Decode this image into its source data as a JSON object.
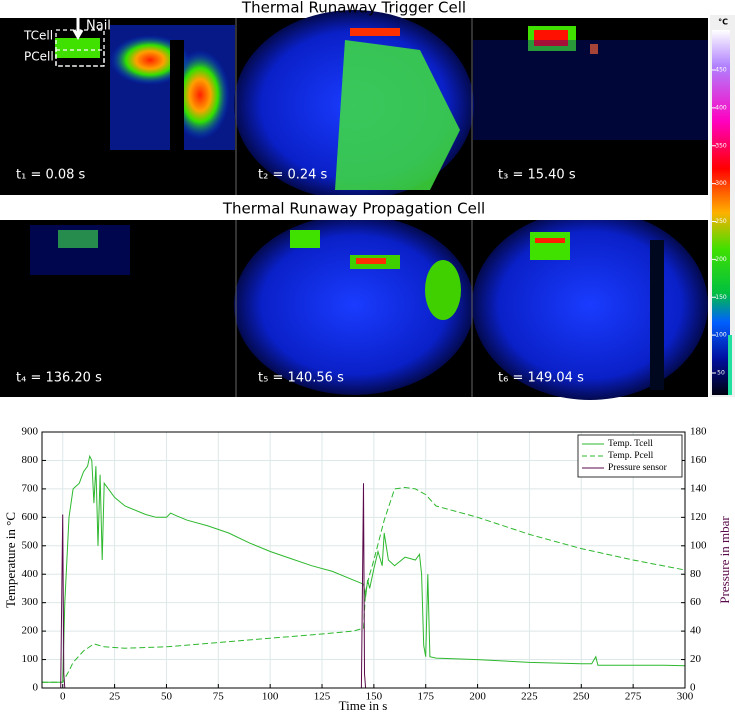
{
  "figure": {
    "row_titles": [
      "Thermal Runaway Trigger Cell",
      "Thermal Runaway Propagation Cell"
    ],
    "panels": [
      "t₁ = 0.08 s",
      "t₂ = 0.24 s",
      "t₃ = 15.40 s",
      "t₄ = 136.20 s",
      "t₅ = 140.56 s",
      "t₆ = 149.04 s"
    ],
    "annotations": [
      "Nail",
      "TCell",
      "PCell"
    ],
    "colorbar": {
      "unit": "°C",
      "ticks": [
        50,
        100,
        150,
        200,
        250,
        300,
        350,
        400,
        450
      ]
    }
  },
  "chart_data": {
    "type": "line",
    "xlabel": "Time in s",
    "ylabel": "Temperature in °C",
    "y2label": "Pressure in mbar",
    "xlim": [
      -10,
      300
    ],
    "xticks": [
      0,
      25,
      50,
      75,
      100,
      125,
      150,
      175,
      200,
      225,
      250,
      275,
      300
    ],
    "ylim": [
      0,
      900
    ],
    "yticks": [
      0,
      100,
      200,
      300,
      400,
      500,
      600,
      700,
      800,
      900
    ],
    "y2lim": [
      0,
      180
    ],
    "y2ticks": [
      0,
      20,
      40,
      60,
      80,
      100,
      120,
      140,
      160,
      180
    ],
    "grid": true,
    "legend": "upper-right",
    "series": [
      {
        "name": "Temp. Tcell",
        "color": "#2eb82e",
        "dash": "solid",
        "x": [
          -10,
          0,
          1,
          3,
          5,
          8,
          10,
          12,
          13,
          14,
          15,
          16,
          17,
          18,
          19,
          20,
          22,
          25,
          30,
          40,
          45,
          50,
          52,
          55,
          60,
          70,
          80,
          90,
          100,
          110,
          120,
          130,
          140,
          145,
          146,
          147,
          148,
          150,
          152,
          154,
          155,
          157,
          160,
          165,
          170,
          172,
          173,
          174,
          175,
          176,
          177,
          180,
          200,
          225,
          250,
          255,
          257,
          258,
          275,
          290,
          300
        ],
        "values": [
          20,
          20,
          300,
          600,
          700,
          720,
          760,
          780,
          815,
          800,
          650,
          780,
          500,
          750,
          450,
          720,
          700,
          670,
          640,
          610,
          600,
          600,
          615,
          605,
          590,
          570,
          545,
          510,
          480,
          455,
          430,
          410,
          380,
          365,
          320,
          380,
          350,
          420,
          480,
          430,
          545,
          450,
          430,
          460,
          450,
          470,
          400,
          150,
          110,
          400,
          110,
          105,
          100,
          90,
          85,
          85,
          110,
          80,
          80,
          80,
          78
        ]
      },
      {
        "name": "Temp. Pcell",
        "color": "#2eb82e",
        "dash": "dashed",
        "x": [
          -10,
          0,
          3,
          5,
          10,
          15,
          20,
          30,
          50,
          75,
          100,
          125,
          140,
          145,
          146,
          148,
          150,
          155,
          160,
          165,
          170,
          175,
          180,
          200,
          225,
          250,
          275,
          300
        ],
        "values": [
          20,
          20,
          60,
          90,
          130,
          155,
          145,
          140,
          145,
          160,
          175,
          190,
          200,
          210,
          340,
          400,
          450,
          590,
          700,
          705,
          700,
          680,
          640,
          600,
          540,
          490,
          450,
          415
        ]
      },
      {
        "name": "Pressure sensor",
        "color": "#5a0a4a",
        "dash": "solid",
        "axis": "y2",
        "x": [
          -10,
          -1,
          0,
          0.5,
          1,
          144,
          145,
          145.5,
          146,
          300
        ],
        "values": [
          0,
          0,
          122,
          10,
          0,
          0,
          144,
          10,
          0,
          0
        ]
      }
    ]
  }
}
